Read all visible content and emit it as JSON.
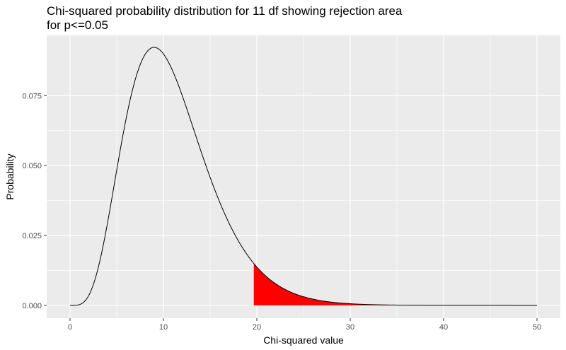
{
  "chart_data": {
    "type": "area",
    "title_lines": [
      "Chi-squared probability distribution for 11 df showing rejection area",
      "for p<=0.05"
    ],
    "xlabel": "Chi-squared value",
    "ylabel": "Probability",
    "degrees_of_freedom": 11,
    "xlim": [
      -2.5,
      52.5
    ],
    "ylim": [
      -0.0046,
      0.0966
    ],
    "x_ticks": [
      0,
      10,
      20,
      30,
      40,
      50
    ],
    "y_ticks": [
      0.0,
      0.025,
      0.05,
      0.075
    ],
    "x_tick_labels": [
      "0",
      "10",
      "20",
      "30",
      "40",
      "50"
    ],
    "y_tick_labels": [
      "0.000",
      "0.025",
      "0.050",
      "0.075"
    ],
    "curve_range": [
      0,
      50
    ],
    "rejection_region": {
      "from": 19.675,
      "to": 34,
      "color": "#ff0000"
    },
    "curve_color": "#000000",
    "panel_background": "#ebebeb",
    "grid_color": "#ffffff",
    "grid": true,
    "legend": "none"
  }
}
